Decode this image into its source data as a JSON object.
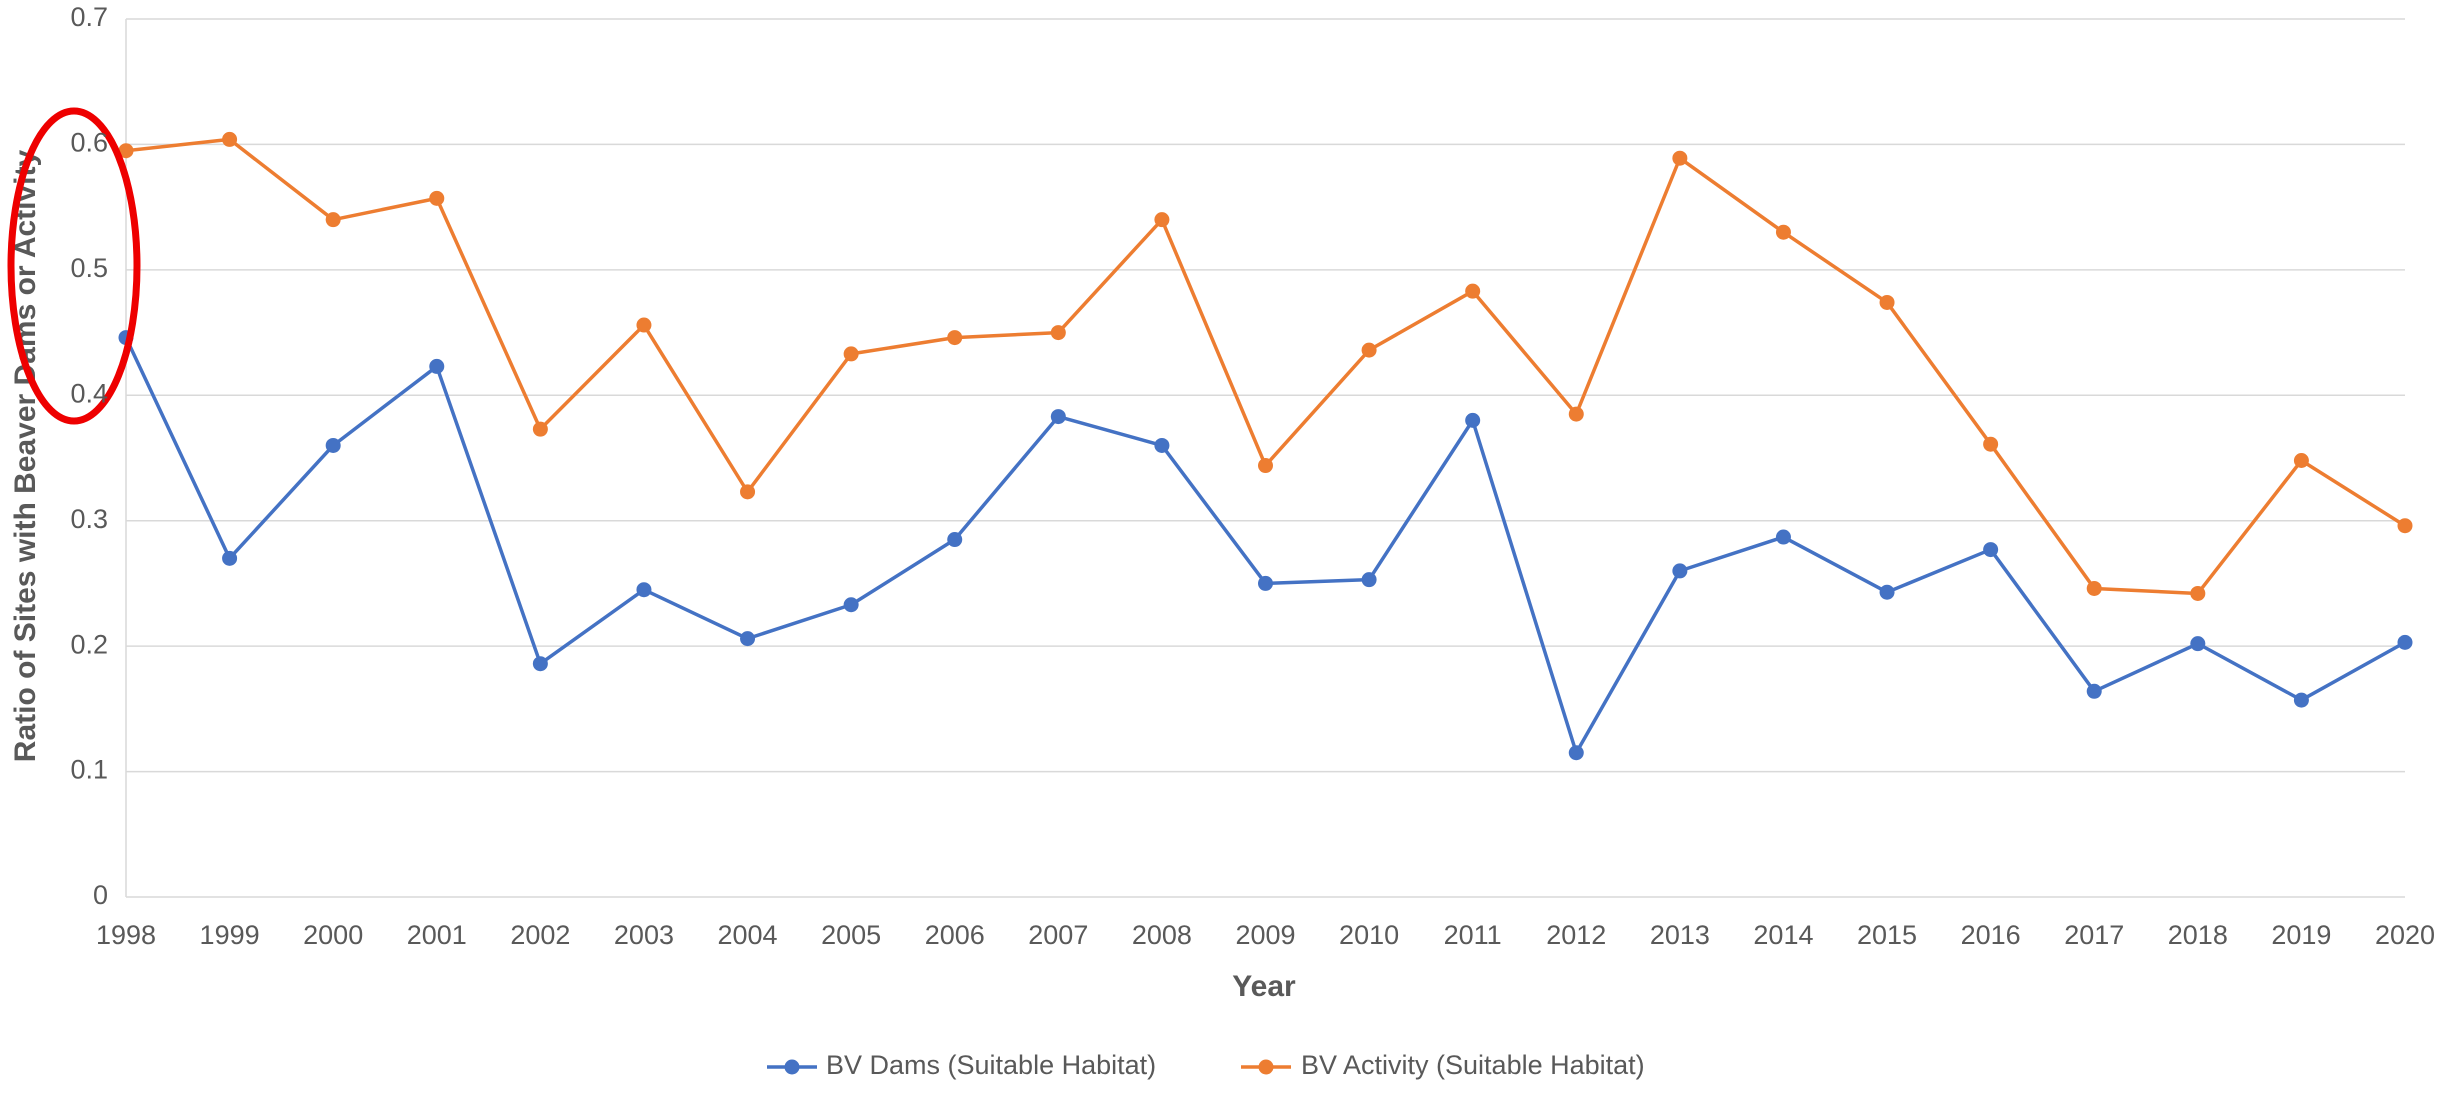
{
  "chart_data": {
    "type": "line",
    "y_label": "Ratio of Sites with Beaver Dams or Activity",
    "x_label": "Year",
    "categories": [
      "1998",
      "1999",
      "2000",
      "2001",
      "2002",
      "2003",
      "2004",
      "2005",
      "2006",
      "2007",
      "2008",
      "2009",
      "2010",
      "2011",
      "2012",
      "2013",
      "2014",
      "2015",
      "2016",
      "2017",
      "2018",
      "2019",
      "2020"
    ],
    "series": [
      {
        "name": "BV Dams (Suitable Habitat)",
        "color": "#4472c4",
        "values": [
          0.446,
          0.27,
          0.36,
          0.423,
          0.186,
          0.245,
          0.206,
          0.233,
          0.285,
          0.383,
          0.36,
          0.25,
          0.253,
          0.38,
          0.115,
          0.26,
          0.287,
          0.243,
          0.277,
          0.164,
          0.202,
          0.157,
          0.203
        ]
      },
      {
        "name": "BV Activity (Suitable Habitat)",
        "color": "#ed7d31",
        "values": [
          0.595,
          0.604,
          0.54,
          0.557,
          0.373,
          0.456,
          0.323,
          0.433,
          0.446,
          0.45,
          0.54,
          0.344,
          0.436,
          0.483,
          0.385,
          0.589,
          0.53,
          0.474,
          0.361,
          0.246,
          0.242,
          0.348,
          0.296
        ]
      }
    ],
    "ylim": [
      0,
      0.7
    ],
    "yticks": [
      0,
      0.1,
      0.2,
      0.3,
      0.4,
      0.5,
      0.6,
      0.7
    ],
    "grid": true,
    "legend": "bottom"
  }
}
